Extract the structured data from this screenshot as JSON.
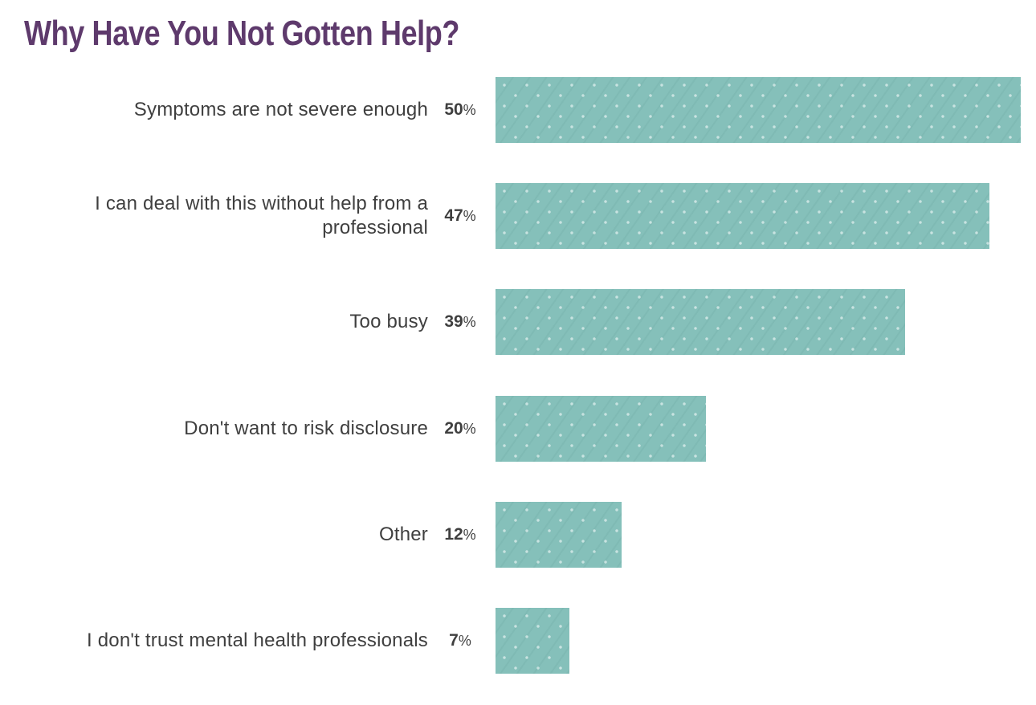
{
  "colors": {
    "title": "#5e3a6c",
    "bar": "#85c0ba",
    "label": "#3f3f3f",
    "background": "#ffffff"
  },
  "chart_data": {
    "type": "bar",
    "orientation": "horizontal",
    "title": "Why Have You Not Gotten Help?",
    "categories": [
      "Symptoms are not severe enough",
      "I can deal with this without help from a professional",
      "Too busy",
      "Don't want to risk disclosure",
      "Other",
      "I don't trust mental health professionals"
    ],
    "values": [
      50,
      47,
      39,
      20,
      12,
      7
    ],
    "unit": "%",
    "display_values": [
      "50%",
      "47%",
      "39%",
      "20%",
      "12%",
      "7%"
    ],
    "xlabel": "",
    "ylabel": "",
    "xlim": [
      0,
      50
    ],
    "grid": false,
    "legend": false,
    "value_label_position": "left-of-bar"
  }
}
